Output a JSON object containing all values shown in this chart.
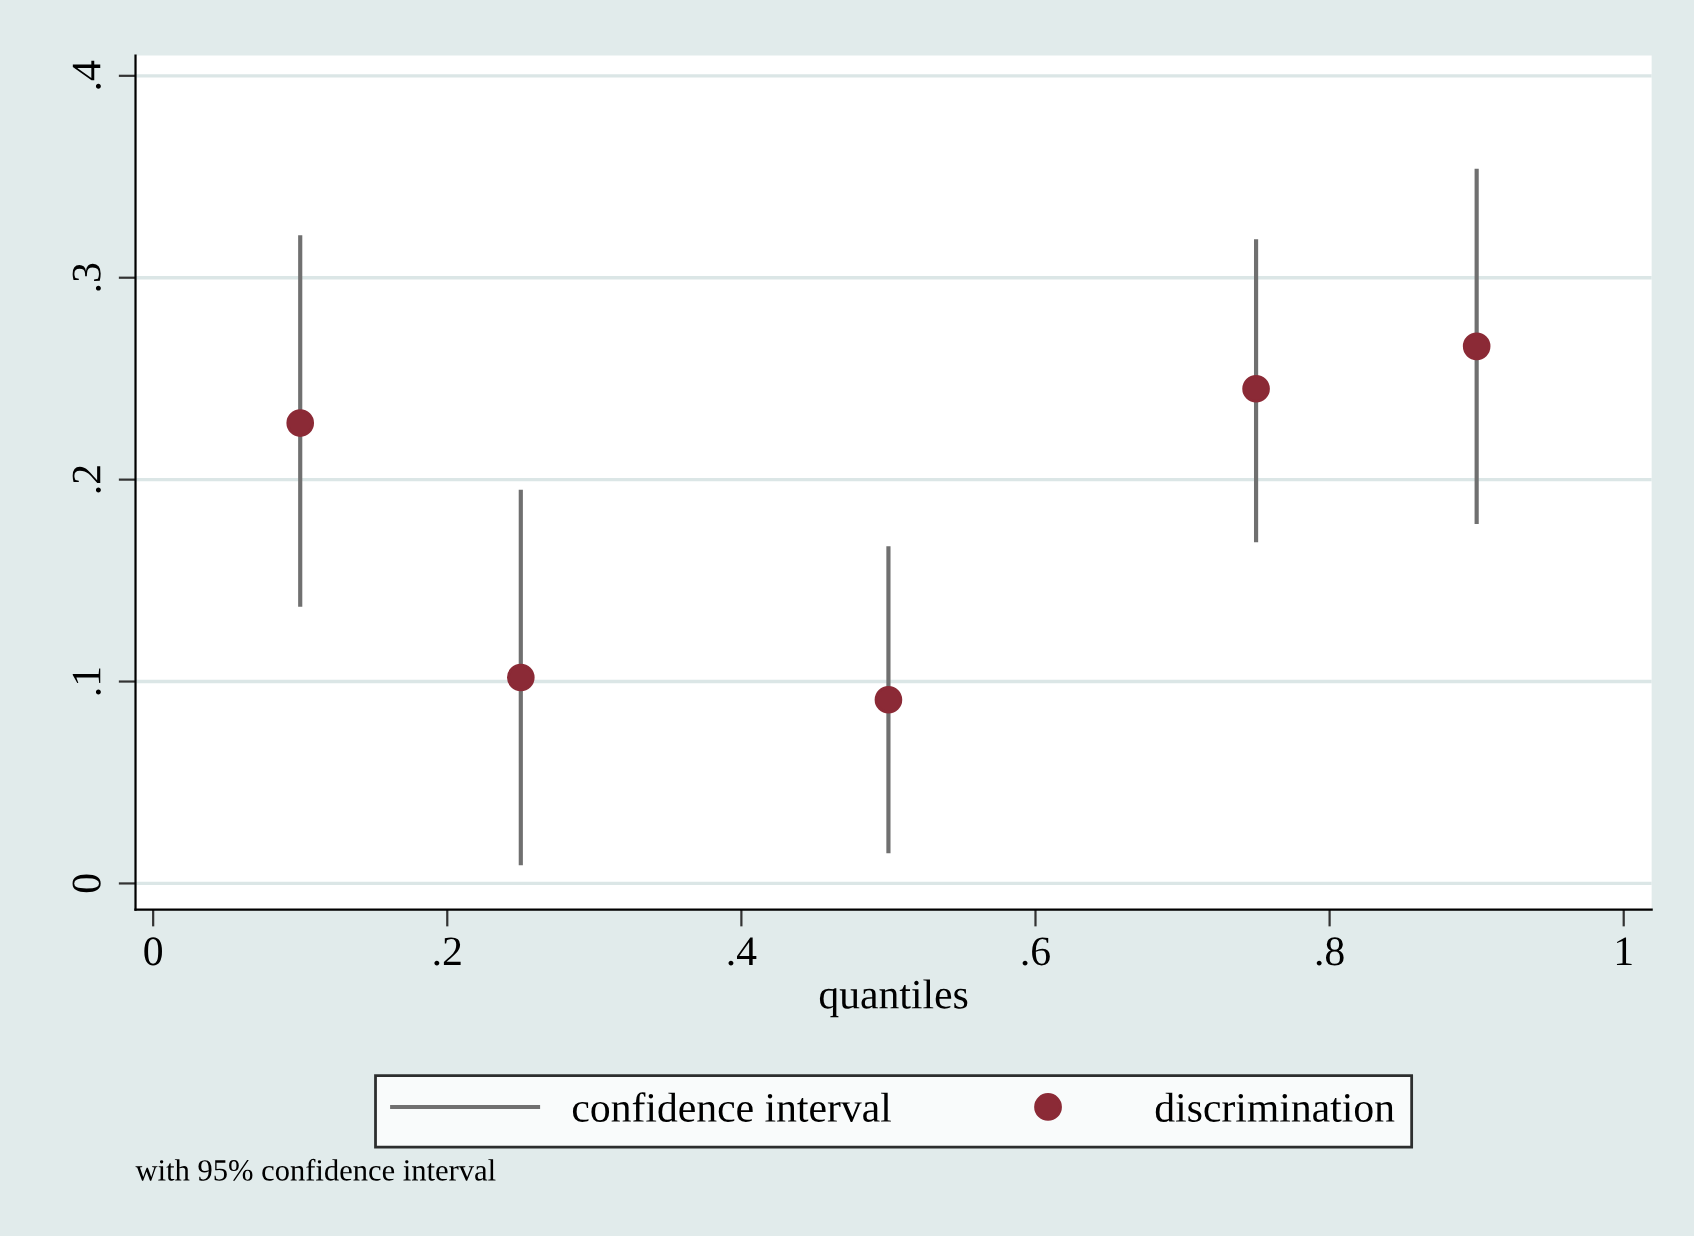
{
  "chart_data": {
    "type": "scatter",
    "xlabel": "quantiles",
    "x": [
      0.1,
      0.25,
      0.5,
      0.75,
      0.9
    ],
    "series": [
      {
        "name": "confidence interval",
        "type": "line",
        "color": "#707070",
        "marker": "none",
        "line_style": "solid",
        "x": [
          0.1,
          0.1,
          null,
          0.25,
          0.25,
          null,
          0.5,
          0.5,
          null,
          0.75,
          0.75,
          null,
          0.9,
          0.9
        ],
        "values": [
          0.137,
          0.321,
          null,
          0.009,
          0.195,
          null,
          0.015,
          0.167,
          null,
          0.169,
          0.319,
          null,
          0.178,
          0.354
        ]
      },
      {
        "name": "discrimination",
        "color": "#8b2a36",
        "marker": "circle",
        "values": [
          0.228,
          0.102,
          0.091,
          0.245,
          0.266
        ]
      }
    ],
    "xlim": [
      -0.012,
      1.019
    ],
    "xticks": [
      0,
      {
        "value": 0.2,
        "label": ".2"
      },
      {
        "value": 0.4,
        "label": ".4"
      },
      {
        "value": 0.6,
        "label": ".6"
      },
      {
        "value": 0.8,
        "label": ".8"
      },
      1
    ],
    "ylim": [
      -0.013,
      0.41
    ],
    "yticks": [
      0,
      {
        "value": 0.1,
        "label": ".1"
      },
      {
        "value": 0.2,
        "label": ".2"
      },
      {
        "value": 0.3,
        "label": ".3"
      },
      {
        "value": 0.4,
        "label": ".4"
      }
    ],
    "grid": "y",
    "legend": "bottom",
    "annotations": [
      "with 95% confidence interval"
    ]
  }
}
